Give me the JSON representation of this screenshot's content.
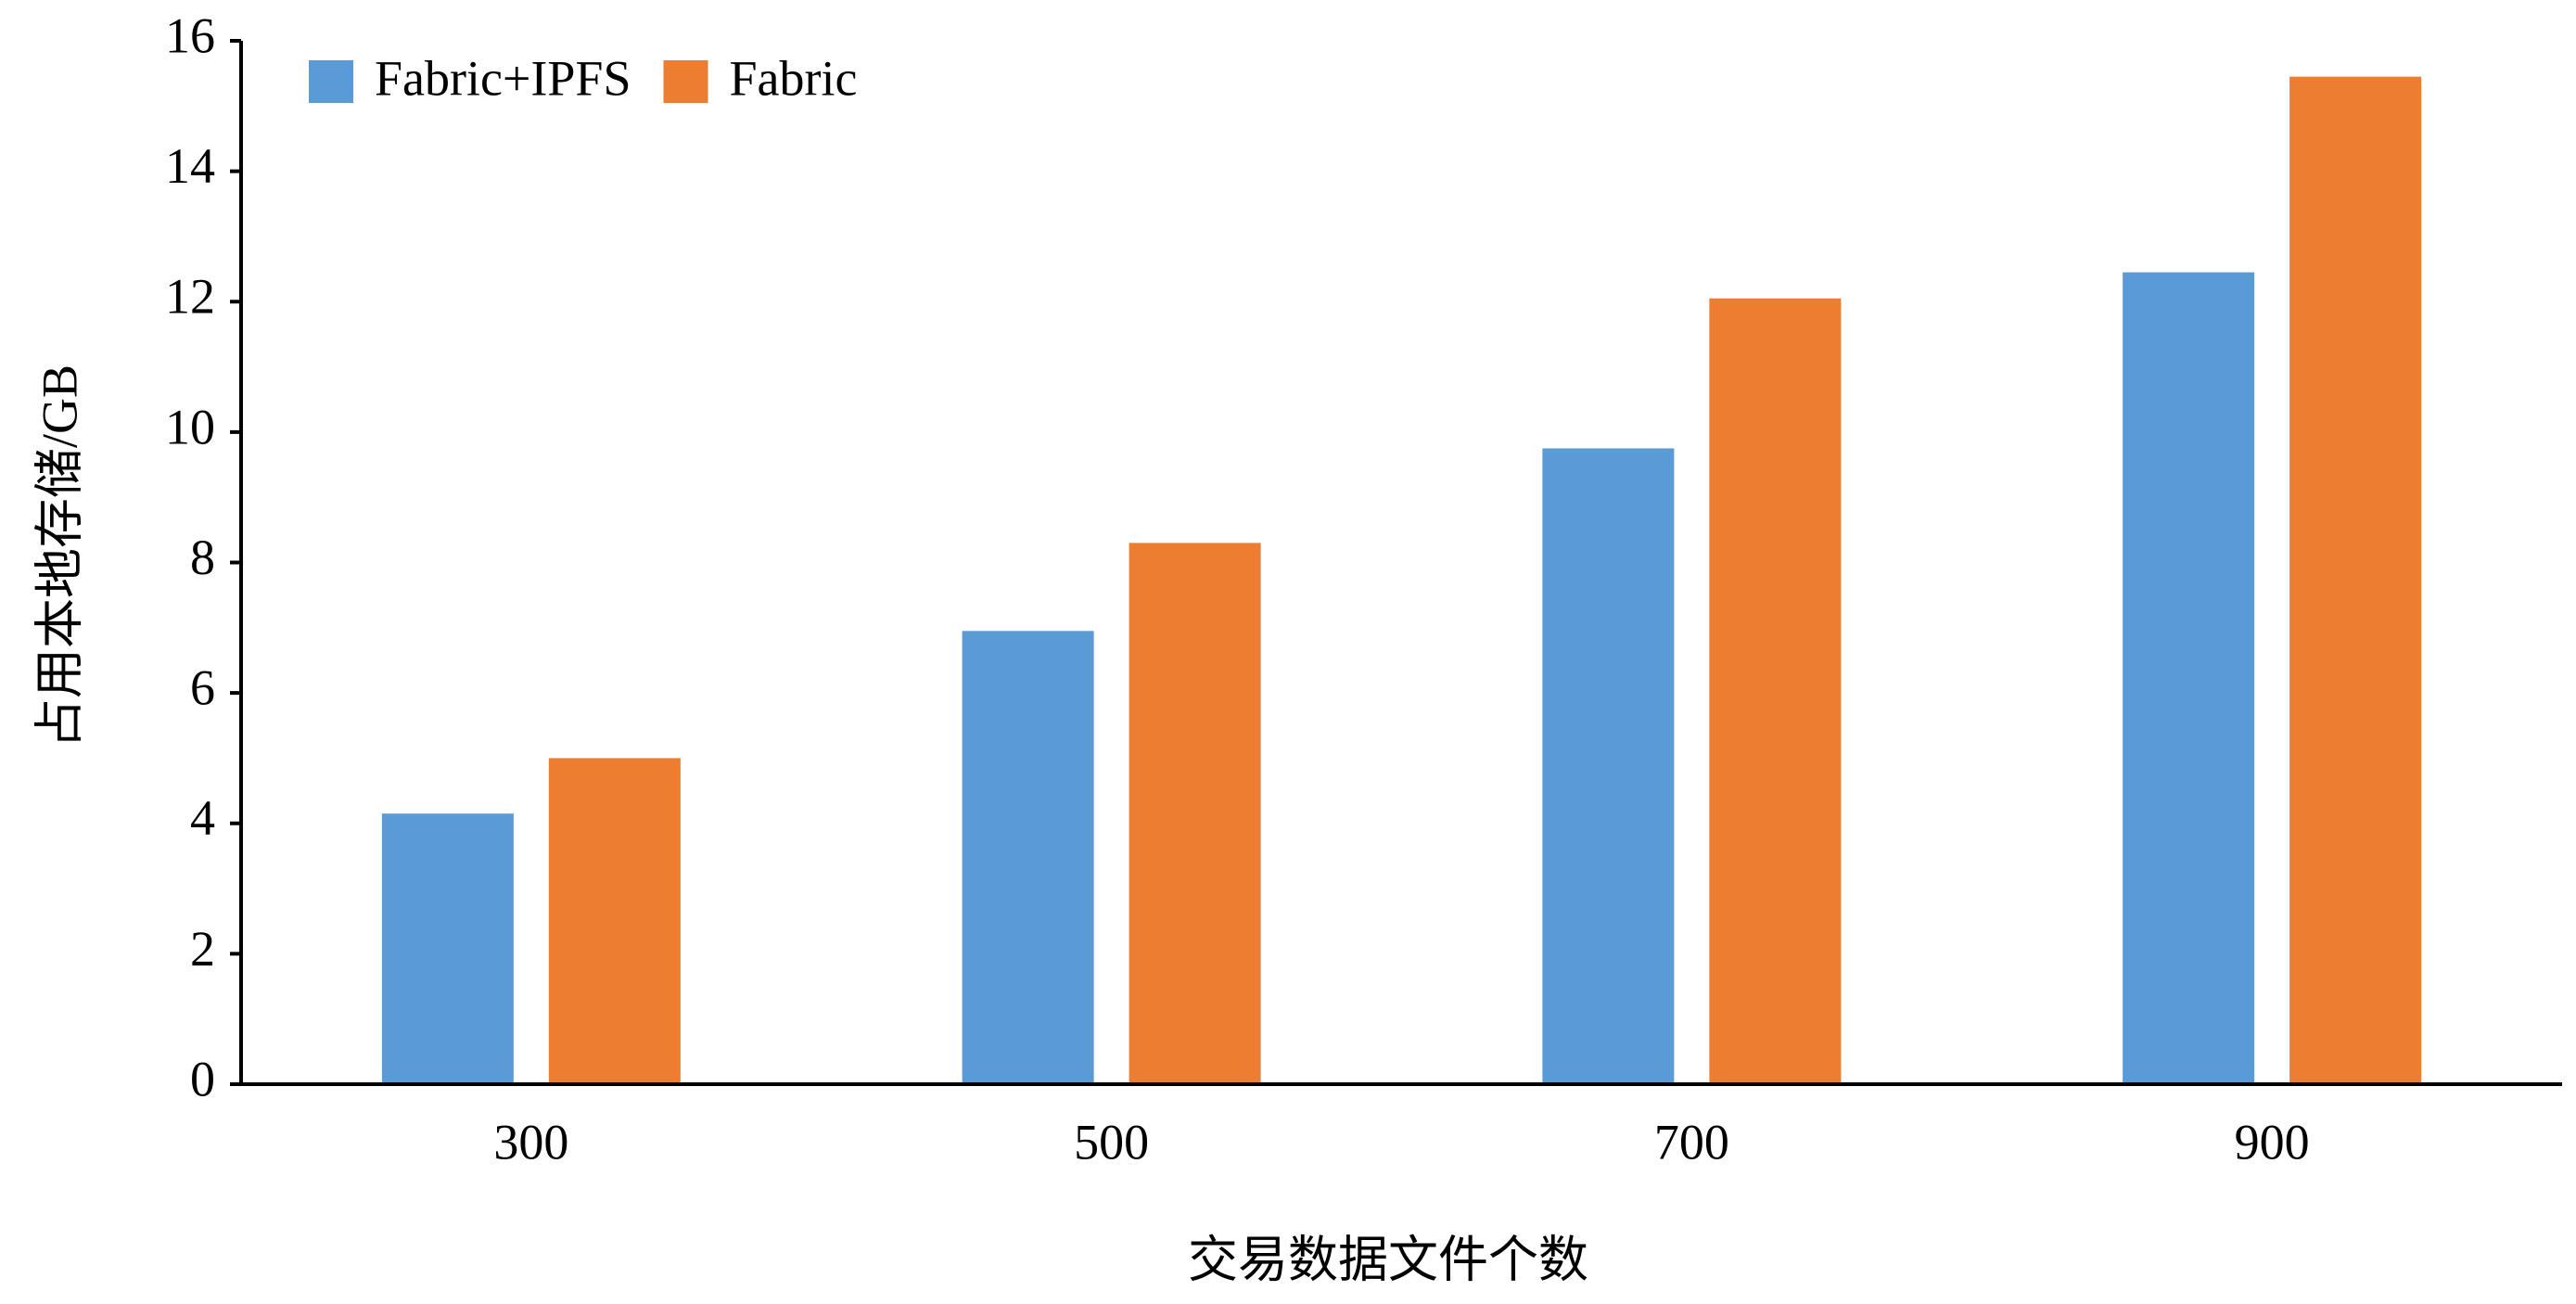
{
  "chart_data": {
    "type": "bar",
    "x_label": "交易数据文件个数",
    "y_label": "占用本地存储/GB",
    "categories": [
      "300",
      "500",
      "700",
      "900"
    ],
    "series": [
      {
        "name": "Fabric+IPFS",
        "color": "#5b9bd5",
        "values": [
          4.15,
          6.95,
          9.75,
          12.45
        ]
      },
      {
        "name": "Fabric",
        "color": "#ed7d31",
        "values": [
          5.0,
          8.3,
          12.05,
          15.45
        ]
      }
    ],
    "ylim": [
      0,
      16
    ],
    "yticks": [
      0,
      2,
      4,
      6,
      8,
      10,
      12,
      14,
      16
    ],
    "grid": false,
    "legend": "top-left"
  }
}
